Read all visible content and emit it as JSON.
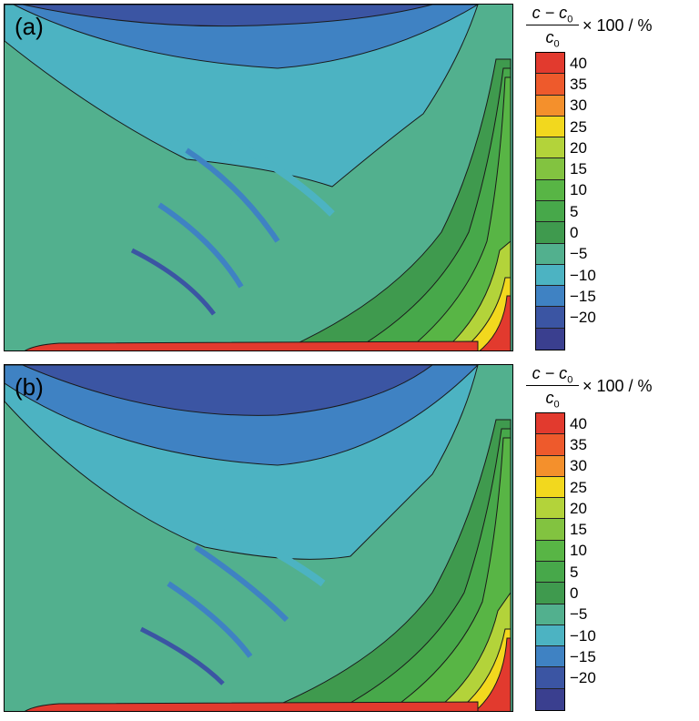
{
  "chart_data": [
    {
      "type": "heatmap",
      "panel_label": "(a)",
      "colorbar": {
        "label_numerator": "c − c",
        "label_numerator_sub": "0",
        "label_denominator": "c",
        "label_denominator_sub": "0",
        "label_unit": "× 100 / %",
        "ticks": [
          "40",
          "35",
          "30",
          "25",
          "20",
          "15",
          "10",
          "5",
          "0",
          "−5",
          "−10",
          "−15",
          "−20"
        ],
        "colors": [
          "#e23a2e",
          "#ee5a2c",
          "#f4902c",
          "#f2d81e",
          "#b3d33a",
          "#82c340",
          "#58b545",
          "#47a84a",
          "#3f9a4e",
          "#52b08e",
          "#4cb3c2",
          "#3f82c3",
          "#3b55a3",
          "#3a3f8f"
        ],
        "vmin": -20,
        "vmax": 40
      }
    },
    {
      "type": "heatmap",
      "panel_label": "(b)",
      "colorbar": {
        "label_numerator": "c − c",
        "label_numerator_sub": "0",
        "label_denominator": "c",
        "label_denominator_sub": "0",
        "label_unit": "× 100 / %",
        "ticks": [
          "40",
          "35",
          "30",
          "25",
          "20",
          "15",
          "10",
          "5",
          "0",
          "−5",
          "−10",
          "−15",
          "−20"
        ],
        "colors": [
          "#e23a2e",
          "#ee5a2c",
          "#f4902c",
          "#f2d81e",
          "#b3d33a",
          "#82c340",
          "#58b545",
          "#47a84a",
          "#3f9a4e",
          "#52b08e",
          "#4cb3c2",
          "#3f82c3",
          "#3b55a3",
          "#3a3f8f"
        ],
        "vmin": -20,
        "vmax": 40
      }
    }
  ]
}
